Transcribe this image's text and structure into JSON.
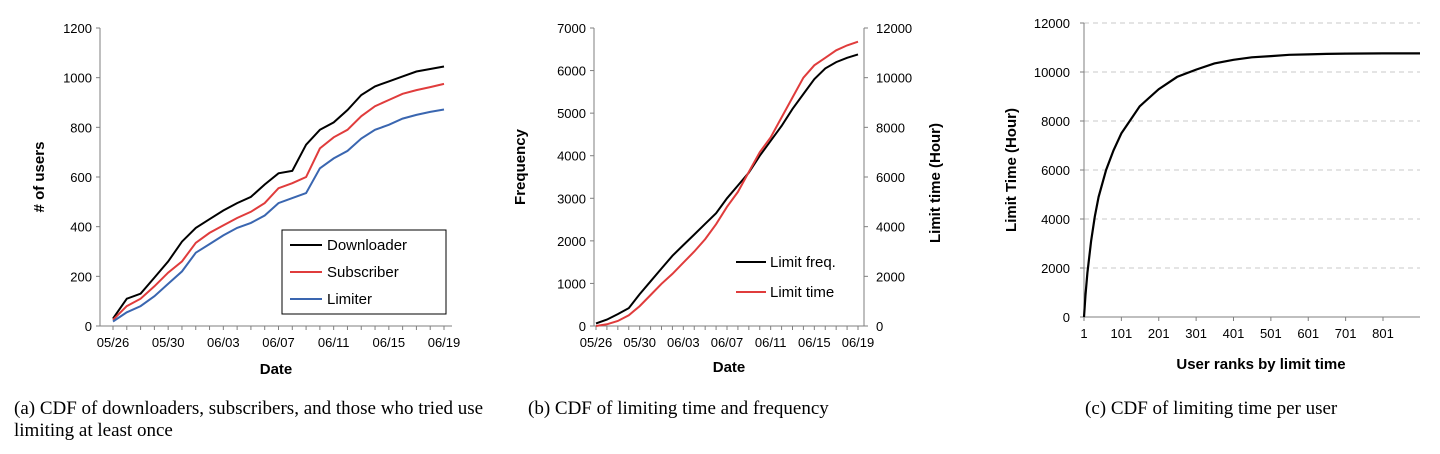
{
  "chart_data": [
    {
      "type": "line",
      "xlabel": "Date",
      "ylabel": "# of users",
      "ylim": [
        0,
        1200
      ],
      "yticks": [
        0,
        200,
        400,
        600,
        800,
        1000,
        1200
      ],
      "x_dates": [
        "05/26",
        "05/27",
        "05/28",
        "05/29",
        "05/30",
        "05/31",
        "06/01",
        "06/02",
        "06/03",
        "06/04",
        "06/05",
        "06/06",
        "06/07",
        "06/08",
        "06/09",
        "06/10",
        "06/11",
        "06/12",
        "06/13",
        "06/14",
        "06/15",
        "06/16",
        "06/17",
        "06/18",
        "06/19"
      ],
      "xtick_labels": [
        "05/26",
        "05/30",
        "06/03",
        "06/07",
        "06/11",
        "06/15",
        "06/19"
      ],
      "grid": false,
      "legend_position": "bottom-right",
      "series": [
        {
          "name": "Downloader",
          "color": "#000000",
          "values": [
            30,
            110,
            130,
            195,
            260,
            340,
            395,
            430,
            465,
            495,
            520,
            570,
            615,
            625,
            730,
            790,
            820,
            870,
            930,
            965,
            985,
            1005,
            1025,
            1035,
            1045
          ]
        },
        {
          "name": "Subscriber",
          "color": "#e03c3c",
          "values": [
            25,
            80,
            110,
            160,
            215,
            260,
            335,
            375,
            405,
            435,
            460,
            495,
            555,
            575,
            600,
            715,
            760,
            790,
            845,
            885,
            910,
            935,
            950,
            962,
            975
          ]
        },
        {
          "name": "Limiter",
          "color": "#3a66b0",
          "values": [
            18,
            55,
            80,
            120,
            170,
            220,
            295,
            330,
            365,
            395,
            415,
            445,
            495,
            515,
            535,
            635,
            675,
            705,
            755,
            790,
            810,
            835,
            850,
            862,
            872
          ]
        }
      ],
      "caption": "(a) CDF of downloaders, subscribers, and those who tried use limiting at least once"
    },
    {
      "type": "line",
      "xlabel": "Date",
      "ylabel": "Frequency",
      "ylabel_right": "Limit time (Hour)",
      "ylim": [
        0,
        7000
      ],
      "ylim_right": [
        0,
        12000
      ],
      "yticks": [
        0,
        1000,
        2000,
        3000,
        4000,
        5000,
        6000,
        7000
      ],
      "yticks_right": [
        0,
        2000,
        4000,
        6000,
        8000,
        10000,
        12000
      ],
      "x_dates": [
        "05/26",
        "05/27",
        "05/28",
        "05/29",
        "05/30",
        "05/31",
        "06/01",
        "06/02",
        "06/03",
        "06/04",
        "06/05",
        "06/06",
        "06/07",
        "06/08",
        "06/09",
        "06/10",
        "06/11",
        "06/12",
        "06/13",
        "06/14",
        "06/15",
        "06/16",
        "06/17",
        "06/18",
        "06/19"
      ],
      "xtick_labels": [
        "05/26",
        "05/30",
        "06/03",
        "06/07",
        "06/11",
        "06/15",
        "06/19"
      ],
      "grid": false,
      "legend_position": "bottom-right",
      "series": [
        {
          "name": "Limit freq.",
          "axis": "left",
          "color": "#000000",
          "values": [
            60,
            150,
            280,
            420,
            750,
            1050,
            1350,
            1650,
            1900,
            2150,
            2400,
            2650,
            3000,
            3300,
            3600,
            4000,
            4350,
            4700,
            5100,
            5450,
            5800,
            6050,
            6200,
            6300,
            6380
          ]
        },
        {
          "name": "Limit time",
          "axis": "right",
          "color": "#e03c3c",
          "values": [
            0,
            70,
            200,
            430,
            800,
            1250,
            1700,
            2100,
            2550,
            3000,
            3500,
            4100,
            4800,
            5400,
            6200,
            7000,
            7600,
            8400,
            9200,
            10000,
            10500,
            10800,
            11100,
            11300,
            11450
          ]
        }
      ],
      "caption": "(b) CDF of limiting time and frequency"
    },
    {
      "type": "line",
      "xlabel": "User ranks by limit time",
      "ylabel": "Limit Time (Hour)",
      "ylim": [
        0,
        12000
      ],
      "yticks": [
        0,
        2000,
        4000,
        6000,
        8000,
        10000,
        12000
      ],
      "xlim": [
        1,
        900
      ],
      "xticks": [
        1,
        101,
        201,
        301,
        401,
        501,
        601,
        701,
        801
      ],
      "grid": true,
      "series": [
        {
          "color": "#000000",
          "x": [
            1,
            5,
            10,
            20,
            30,
            40,
            60,
            80,
            101,
            150,
            201,
            250,
            301,
            350,
            401,
            450,
            501,
            550,
            601,
            650,
            701,
            801,
            900
          ],
          "values": [
            0,
            900,
            1800,
            3100,
            4100,
            4900,
            6000,
            6800,
            7500,
            8600,
            9300,
            9800,
            10100,
            10350,
            10500,
            10600,
            10650,
            10700,
            10720,
            10740,
            10750,
            10760,
            10760
          ]
        }
      ],
      "caption": "(c) CDF of limiting time per user"
    }
  ]
}
